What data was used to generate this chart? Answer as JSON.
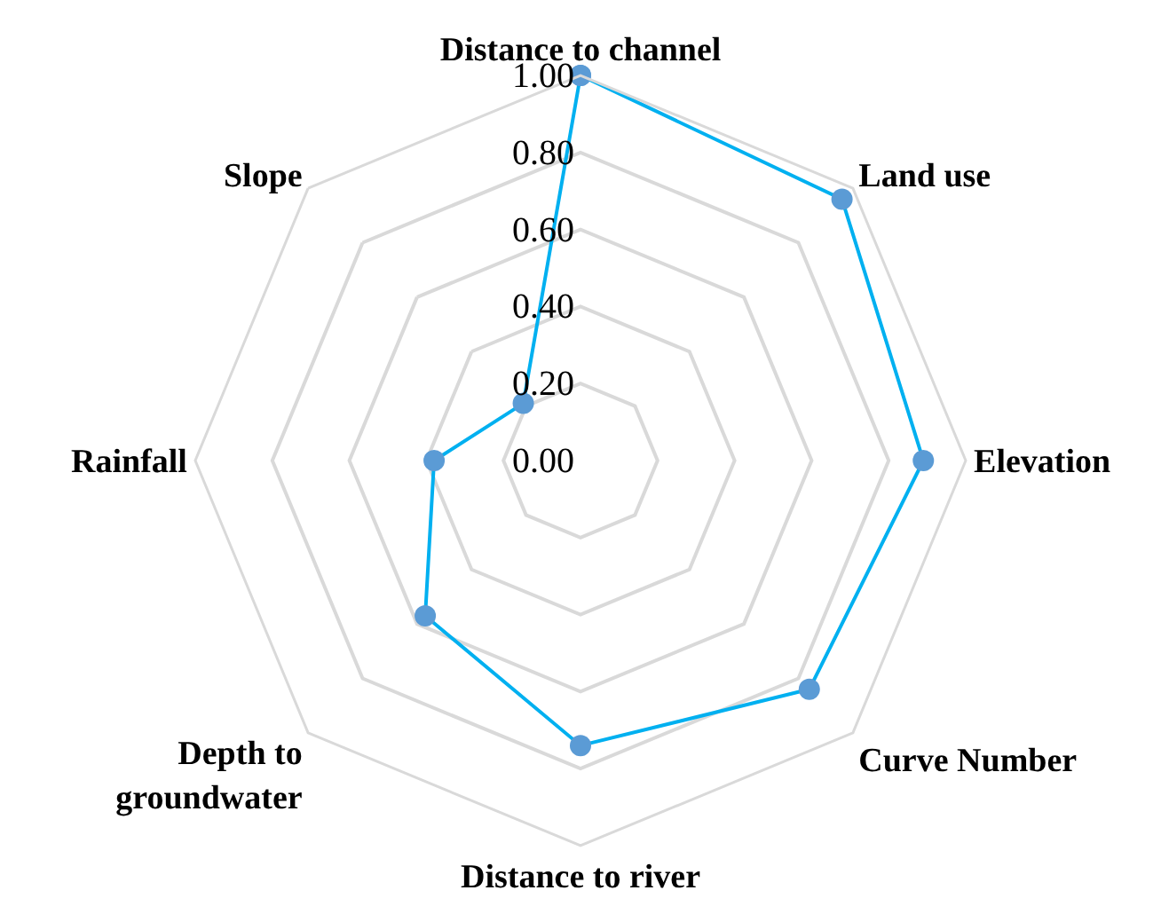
{
  "chart_data": {
    "type": "radar",
    "categories": [
      "Distance to channel",
      "Land use",
      "Elevation",
      "Curve Number",
      "Distance to river",
      "Depth to groundwater",
      "Rainfall",
      "Slope"
    ],
    "series": [
      {
        "color": "#00b0f0",
        "values": [
          1.0,
          0.96,
          0.89,
          0.84,
          0.74,
          0.57,
          0.38,
          0.21
        ]
      }
    ],
    "ylim": [
      0,
      1
    ],
    "yticks": [
      {
        "value": 0,
        "label": "0.00"
      },
      {
        "value": 0.2,
        "label": "0.20"
      },
      {
        "value": 0.4,
        "label": "0.40"
      },
      {
        "value": 0.6,
        "label": "0.60"
      },
      {
        "value": 0.8,
        "label": "0.80"
      },
      {
        "value": 1,
        "label": "1.00"
      }
    ],
    "grid": "y",
    "marker": "circle"
  }
}
